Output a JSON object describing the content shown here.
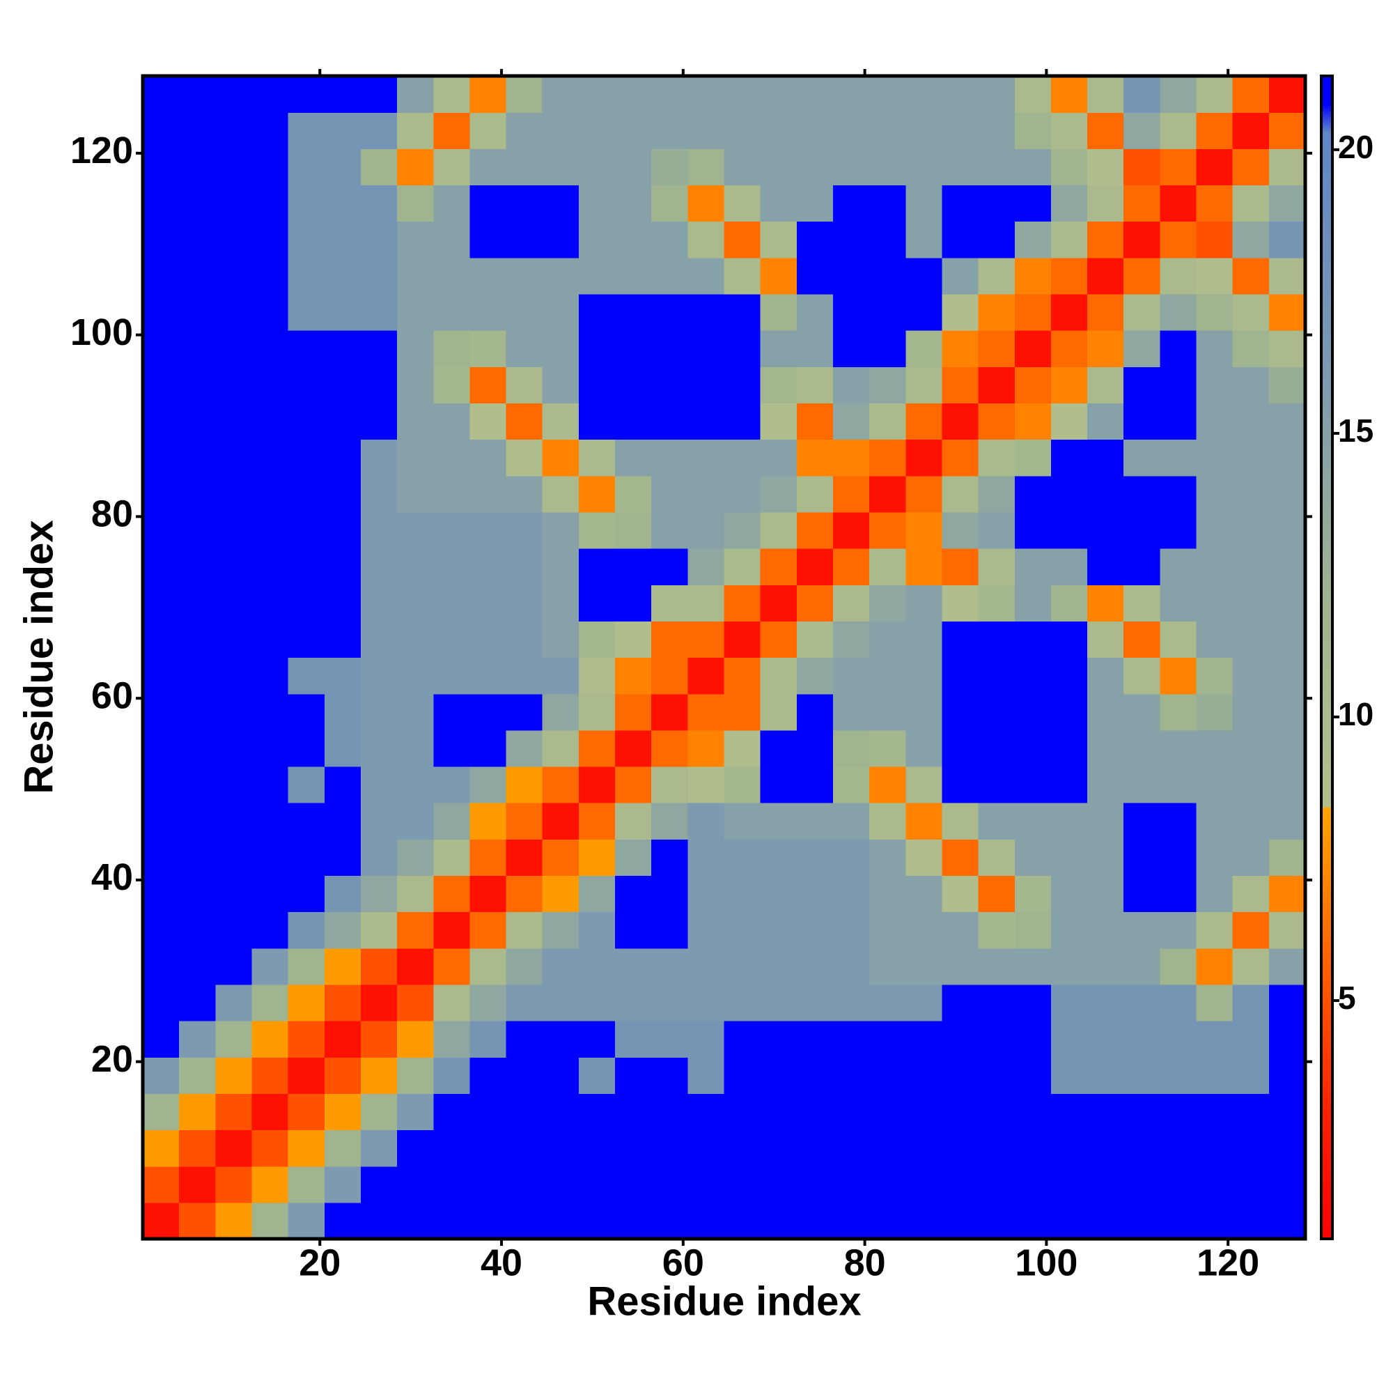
{
  "chart_data": {
    "type": "heatmap",
    "x_label": "Residue index",
    "y_label": "Residue index",
    "x": [
      2.5,
      6.5,
      10.5,
      14.5,
      18.5,
      22.5,
      26.5,
      30.5,
      34.5,
      38.5,
      42.5,
      46.5,
      50.5,
      54.5,
      58.5,
      62.5,
      66.5,
      70.5,
      74.5,
      78.5,
      82.5,
      86.5,
      90.5,
      94.5,
      98.5,
      102.5,
      106.5,
      110.5,
      114.5,
      118.5,
      122.5,
      126.5
    ],
    "y": [
      2.5,
      6.5,
      10.5,
      14.5,
      18.5,
      22.5,
      26.5,
      30.5,
      34.5,
      38.5,
      42.5,
      46.5,
      50.5,
      54.5,
      58.5,
      62.5,
      66.5,
      70.5,
      74.5,
      78.5,
      82.5,
      86.5,
      90.5,
      94.5,
      98.5,
      102.5,
      106.5,
      110.5,
      114.5,
      118.5,
      122.5,
      126.5
    ],
    "xlim": [
      0.5,
      128.5
    ],
    "ylim": [
      0.5,
      128.5
    ],
    "xticks": [
      20,
      40,
      60,
      80,
      100,
      120
    ],
    "yticks": [
      20,
      40,
      60,
      80,
      100,
      120
    ],
    "zlim": [
      0.8,
      21.3
    ],
    "zticks": [
      5,
      10,
      15,
      20
    ],
    "colorscale": [
      [
        0.8,
        "#ff0000"
      ],
      [
        3,
        "#ff2000"
      ],
      [
        8.4,
        "#ffa500"
      ],
      [
        8.41,
        "#b3bf8b"
      ],
      [
        12,
        "#9fb48f"
      ],
      [
        16,
        "#7d9ab0"
      ],
      [
        20.3,
        "#5f86c6"
      ],
      [
        20.8,
        "#0000ff"
      ],
      [
        21.3,
        "#0000ff"
      ]
    ],
    "z": [
      [
        2,
        5,
        8,
        12,
        16,
        21,
        21,
        21,
        21,
        21,
        21,
        21,
        21,
        21,
        21,
        21,
        21,
        21,
        21,
        21,
        21,
        21,
        21,
        21,
        21,
        21,
        21,
        21,
        21,
        21,
        21,
        21
      ],
      [
        5,
        2,
        5,
        8,
        12,
        16,
        21,
        21,
        21,
        21,
        21,
        21,
        21,
        21,
        21,
        21,
        21,
        21,
        21,
        21,
        21,
        21,
        21,
        21,
        21,
        21,
        21,
        21,
        21,
        21,
        21,
        21
      ],
      [
        8,
        5,
        2,
        5,
        8,
        12,
        16,
        21,
        21,
        21,
        21,
        21,
        21,
        21,
        21,
        21,
        21,
        21,
        21,
        21,
        21,
        21,
        21,
        21,
        21,
        21,
        21,
        21,
        21,
        21,
        21,
        21
      ],
      [
        12,
        8,
        5,
        2,
        5,
        8,
        12,
        16,
        21,
        21,
        21,
        21,
        21,
        21,
        21,
        21,
        21,
        21,
        21,
        21,
        21,
        21,
        21,
        21,
        21,
        21,
        21,
        21,
        21,
        21,
        21,
        21
      ],
      [
        16,
        12,
        8,
        5,
        2,
        5,
        8,
        12,
        17,
        21,
        21,
        21,
        17,
        21,
        21,
        17,
        21,
        21,
        21,
        21,
        21,
        21,
        21,
        21,
        21,
        17,
        17,
        17,
        17,
        17,
        17,
        21
      ],
      [
        21,
        16,
        12,
        8,
        5,
        2,
        5,
        8,
        14,
        17,
        21,
        21,
        21,
        17,
        17,
        17,
        21,
        21,
        21,
        21,
        21,
        21,
        21,
        21,
        21,
        17,
        17,
        17,
        17,
        17,
        17,
        21
      ],
      [
        21,
        21,
        16,
        12,
        8,
        5,
        2,
        5,
        10,
        14,
        16,
        16,
        16,
        16,
        16,
        16,
        16,
        16,
        16,
        16,
        16,
        16,
        21,
        21,
        21,
        17,
        17,
        17,
        17,
        12,
        17,
        21
      ],
      [
        21,
        21,
        21,
        16,
        12,
        8,
        5,
        2,
        6,
        10,
        14,
        16,
        16,
        16,
        16,
        16,
        16,
        16,
        16,
        16,
        15,
        15,
        15,
        15,
        15,
        15,
        15,
        15,
        12,
        7,
        10,
        15
      ],
      [
        21,
        21,
        21,
        21,
        17,
        14,
        10,
        6,
        2,
        6,
        10,
        14,
        16,
        21,
        21,
        16,
        16,
        16,
        16,
        16,
        15,
        15,
        15,
        11,
        12,
        15,
        15,
        15,
        15,
        10,
        6,
        10
      ],
      [
        21,
        21,
        21,
        21,
        21,
        17,
        14,
        10,
        6,
        2,
        6,
        8,
        14,
        21,
        21,
        16,
        16,
        16,
        16,
        16,
        15,
        15,
        9,
        6,
        11,
        15,
        15,
        21,
        21,
        15,
        10,
        7
      ],
      [
        21,
        21,
        21,
        21,
        21,
        21,
        16,
        14,
        10,
        6,
        2,
        6,
        8,
        14,
        21,
        16,
        16,
        16,
        16,
        16,
        15,
        9,
        6,
        10,
        15,
        15,
        15,
        21,
        21,
        15,
        15,
        12
      ],
      [
        21,
        21,
        21,
        21,
        21,
        21,
        16,
        16,
        14,
        8,
        6,
        2,
        6,
        10,
        14,
        16,
        15,
        15,
        15,
        15,
        10,
        7,
        10,
        15,
        15,
        15,
        15,
        21,
        21,
        15,
        15,
        15
      ],
      [
        21,
        21,
        21,
        21,
        17,
        21,
        16,
        16,
        16,
        14,
        8,
        6,
        2,
        6,
        10,
        9,
        11,
        21,
        21,
        11,
        7,
        10,
        21,
        21,
        21,
        21,
        15,
        15,
        15,
        15,
        15,
        15
      ],
      [
        21,
        21,
        21,
        21,
        21,
        17,
        16,
        16,
        21,
        21,
        14,
        10,
        6,
        2,
        6,
        7,
        9,
        21,
        21,
        12,
        11,
        15,
        21,
        21,
        21,
        21,
        15,
        15,
        15,
        15,
        15,
        15
      ],
      [
        21,
        21,
        21,
        21,
        21,
        17,
        16,
        16,
        21,
        21,
        21,
        14,
        10,
        6,
        2,
        6,
        6,
        10,
        21,
        15,
        15,
        15,
        21,
        21,
        21,
        21,
        15,
        15,
        12,
        13,
        15,
        15
      ],
      [
        21,
        21,
        21,
        21,
        17,
        17,
        16,
        16,
        16,
        16,
        16,
        16,
        9,
        7,
        6,
        2,
        6,
        10,
        14,
        15,
        15,
        15,
        21,
        21,
        21,
        21,
        15,
        10,
        7,
        12,
        15,
        15
      ],
      [
        21,
        21,
        21,
        21,
        21,
        21,
        16,
        16,
        16,
        16,
        16,
        15,
        11,
        9,
        6,
        6,
        2,
        6,
        10,
        14,
        15,
        15,
        21,
        21,
        21,
        21,
        10,
        6,
        10,
        15,
        15,
        15
      ],
      [
        21,
        21,
        21,
        21,
        21,
        21,
        16,
        16,
        16,
        16,
        16,
        15,
        21,
        21,
        10,
        10,
        6,
        2,
        6,
        10,
        14,
        15,
        9,
        11,
        15,
        12,
        7,
        10,
        15,
        15,
        15,
        15
      ],
      [
        21,
        21,
        21,
        21,
        21,
        21,
        16,
        16,
        16,
        16,
        16,
        15,
        21,
        21,
        21,
        14,
        10,
        6,
        2,
        6,
        10,
        7,
        6,
        10,
        15,
        15,
        21,
        21,
        15,
        15,
        15,
        15
      ],
      [
        21,
        21,
        21,
        21,
        21,
        21,
        16,
        16,
        16,
        16,
        16,
        15,
        11,
        12,
        15,
        15,
        14,
        10,
        6,
        2,
        6,
        7,
        14,
        15,
        21,
        21,
        21,
        21,
        21,
        15,
        15,
        15
      ],
      [
        21,
        21,
        21,
        21,
        21,
        21,
        16,
        15,
        15,
        15,
        15,
        10,
        7,
        11,
        15,
        15,
        15,
        14,
        10,
        6,
        2,
        6,
        10,
        14,
        21,
        21,
        21,
        21,
        21,
        15,
        15,
        15
      ],
      [
        21,
        21,
        21,
        21,
        21,
        21,
        16,
        15,
        15,
        15,
        9,
        7,
        10,
        15,
        15,
        15,
        15,
        15,
        7,
        7,
        6,
        2,
        6,
        10,
        11,
        21,
        21,
        15,
        15,
        15,
        15,
        15
      ],
      [
        21,
        21,
        21,
        21,
        21,
        21,
        21,
        15,
        15,
        9,
        6,
        10,
        21,
        21,
        21,
        21,
        21,
        9,
        6,
        14,
        10,
        6,
        2,
        6,
        7,
        9,
        15,
        21,
        21,
        15,
        15,
        15
      ],
      [
        21,
        21,
        21,
        21,
        21,
        21,
        21,
        15,
        11,
        6,
        10,
        15,
        21,
        21,
        21,
        21,
        21,
        11,
        10,
        15,
        14,
        10,
        6,
        2,
        6,
        7,
        10,
        21,
        21,
        15,
        15,
        13
      ],
      [
        21,
        21,
        21,
        21,
        21,
        21,
        21,
        15,
        12,
        11,
        15,
        15,
        21,
        21,
        21,
        21,
        21,
        15,
        15,
        21,
        21,
        11,
        7,
        6,
        2,
        6,
        7,
        14,
        21,
        15,
        12,
        10
      ],
      [
        21,
        21,
        21,
        21,
        17,
        17,
        17,
        15,
        15,
        15,
        15,
        15,
        21,
        21,
        21,
        21,
        21,
        12,
        15,
        21,
        21,
        21,
        9,
        7,
        6,
        2,
        6,
        10,
        14,
        12,
        10,
        7
      ],
      [
        21,
        21,
        21,
        21,
        17,
        17,
        17,
        15,
        15,
        15,
        15,
        15,
        15,
        15,
        15,
        15,
        10,
        7,
        21,
        21,
        21,
        21,
        15,
        10,
        7,
        6,
        2,
        6,
        10,
        9,
        6,
        10
      ],
      [
        21,
        21,
        21,
        21,
        17,
        17,
        17,
        15,
        15,
        21,
        21,
        21,
        15,
        15,
        15,
        10,
        6,
        10,
        21,
        21,
        21,
        15,
        21,
        21,
        14,
        10,
        6,
        2,
        6,
        5,
        14,
        17
      ],
      [
        21,
        21,
        21,
        21,
        17,
        17,
        17,
        12,
        15,
        21,
        21,
        21,
        15,
        15,
        12,
        7,
        10,
        15,
        15,
        21,
        21,
        15,
        21,
        21,
        21,
        14,
        10,
        6,
        2,
        6,
        10,
        14
      ],
      [
        21,
        21,
        21,
        21,
        17,
        17,
        12,
        7,
        10,
        15,
        15,
        15,
        15,
        15,
        13,
        12,
        15,
        15,
        15,
        15,
        15,
        15,
        15,
        15,
        15,
        12,
        9,
        5,
        6,
        2,
        6,
        10
      ],
      [
        21,
        21,
        21,
        21,
        17,
        17,
        17,
        10,
        6,
        10,
        15,
        15,
        15,
        15,
        15,
        15,
        15,
        15,
        15,
        15,
        15,
        15,
        15,
        15,
        12,
        10,
        6,
        14,
        10,
        6,
        2,
        6
      ],
      [
        21,
        21,
        21,
        21,
        21,
        21,
        21,
        15,
        10,
        7,
        12,
        15,
        15,
        15,
        15,
        15,
        15,
        15,
        15,
        15,
        15,
        15,
        15,
        15,
        10,
        7,
        10,
        17,
        14,
        10,
        6,
        2
      ]
    ]
  }
}
